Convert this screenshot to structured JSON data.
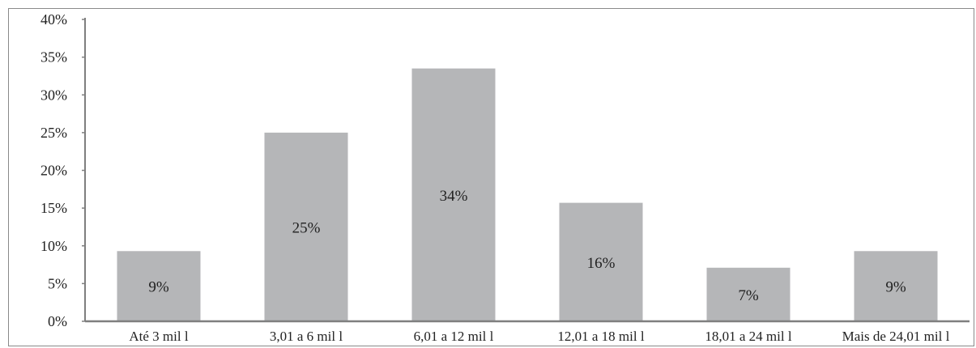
{
  "chart_data": {
    "type": "bar",
    "title": "",
    "xlabel": "",
    "ylabel": "",
    "categories": [
      "Até 3 mil l",
      "3,01 a 6 mil l",
      "6,01 a 12 mil l",
      "12,01 a 18 mil l",
      "18,01 a 24 mil l",
      "Mais de 24,01 mil l"
    ],
    "values": [
      9.3,
      25.0,
      33.5,
      15.7,
      7.1,
      9.3
    ],
    "data_labels": [
      "9%",
      "25%",
      "34%",
      "16%",
      "7%",
      "9%"
    ],
    "yticks": [
      "0%",
      "5%",
      "10%",
      "15%",
      "20%",
      "25%",
      "30%",
      "35%",
      "40%"
    ],
    "ytick_values": [
      0,
      5,
      10,
      15,
      20,
      25,
      30,
      35,
      40
    ],
    "ylim": [
      0,
      40
    ],
    "grid": false,
    "legend": "none",
    "colors": {
      "bar": "#b5b6b8",
      "axis": "#7f7f7f",
      "text": "#222222"
    }
  }
}
